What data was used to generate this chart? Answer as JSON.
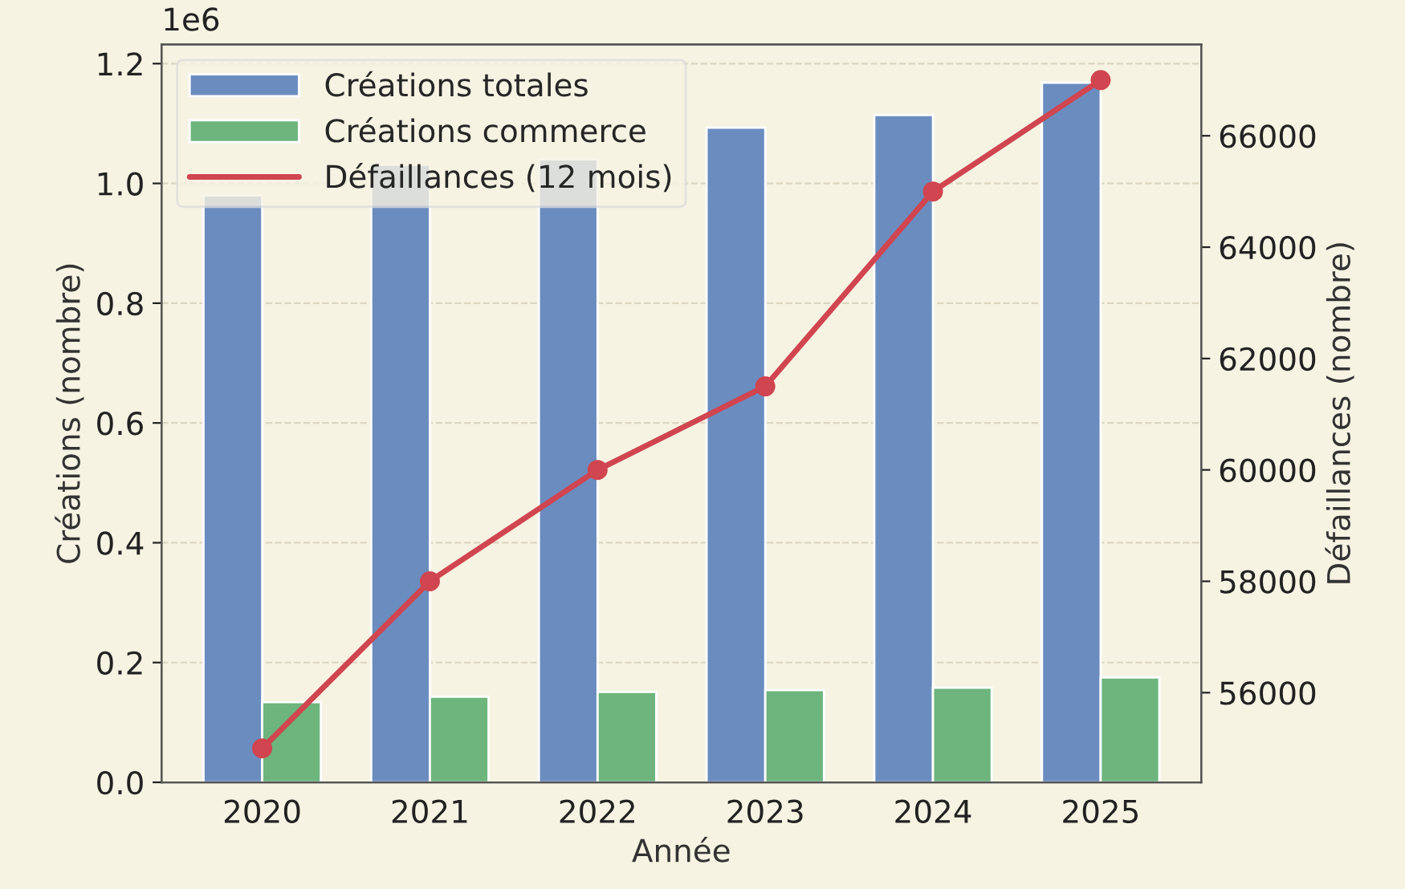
{
  "chart_data": {
    "type": "bar",
    "xlabel": "Année",
    "ylabel": "Créations (nombre)",
    "y2label": "Défaillances (nombre)",
    "categories": [
      "2020",
      "2021",
      "2022",
      "2023",
      "2024",
      "2025"
    ],
    "series": [
      {
        "name": "Créations totales",
        "color": "#6b8cbf",
        "values": [
          0.98,
          1.031,
          1.04,
          1.093,
          1.114,
          1.168
        ]
      },
      {
        "name": "Créations commerce",
        "color": "#6db57d",
        "values": [
          0.134,
          0.143,
          0.151,
          0.154,
          0.158,
          0.175
        ]
      },
      {
        "name": "Défaillances (12 mois)",
        "type": "line",
        "axis": "y2",
        "color": "#d0454f",
        "marker": "circle",
        "values": [
          55000,
          58000,
          60000,
          61500,
          65000,
          67000
        ]
      }
    ],
    "ylim": [
      0,
      1.232
    ],
    "yticks": [
      {
        "value": 0,
        "label": "0.0"
      },
      0.2,
      0.4,
      0.6,
      0.8,
      {
        "value": 1,
        "label": "1.0"
      },
      1.2
    ],
    "y2lim": [
      54390,
      67640
    ],
    "y2ticks": [
      56000,
      58000,
      60000,
      62000,
      64000,
      66000
    ],
    "annotations": [
      "1e6"
    ],
    "grid": "y",
    "legend": "top left"
  }
}
